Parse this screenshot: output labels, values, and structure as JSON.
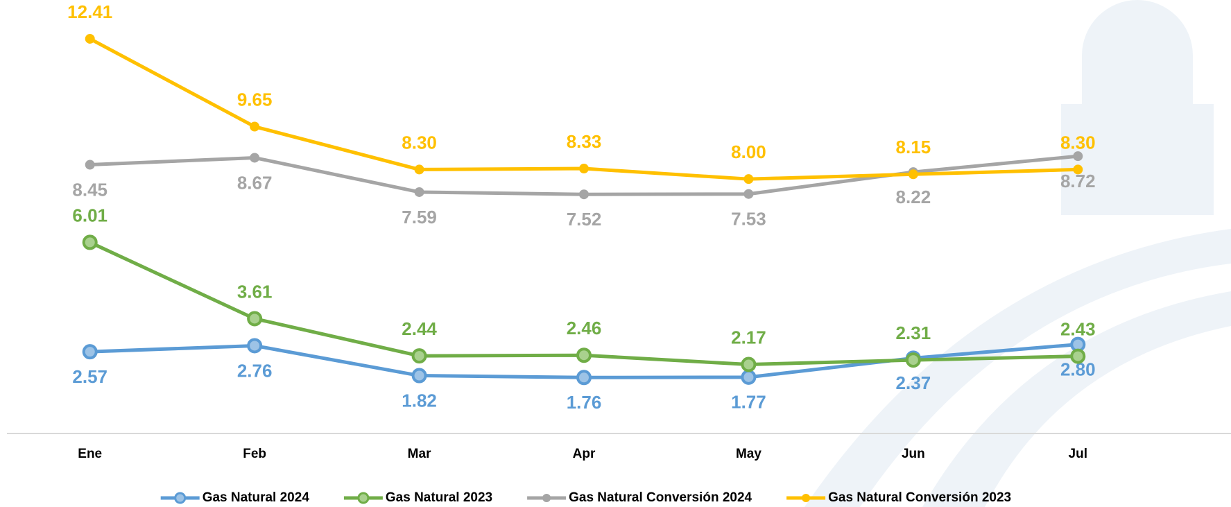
{
  "chart_data": {
    "type": "line",
    "categories": [
      "Ene",
      "Feb",
      "Mar",
      "Apr",
      "May",
      "Jun",
      "Jul"
    ],
    "series": [
      {
        "name": "Gas Natural 2024",
        "color": "#5b9bd5",
        "values": [
          2.57,
          2.76,
          1.82,
          1.76,
          1.77,
          2.37,
          2.8
        ],
        "value_labels": [
          "2.57",
          "2.76",
          "1.82",
          "1.76",
          "1.77",
          "2.37",
          "2.80"
        ]
      },
      {
        "name": "Gas Natural 2023",
        "color": "#70ad47",
        "values": [
          6.01,
          3.61,
          2.44,
          2.46,
          2.17,
          2.31,
          2.43
        ],
        "value_labels": [
          "6.01",
          "3.61",
          "2.44",
          "2.46",
          "2.17",
          "2.31",
          "2.43"
        ]
      },
      {
        "name": "Gas Natural Conversión 2024",
        "color": "#a5a5a5",
        "values": [
          8.45,
          8.67,
          7.59,
          7.52,
          7.53,
          8.22,
          8.72
        ],
        "value_labels": [
          "8.45",
          "8.67",
          "7.59",
          "7.52",
          "7.53",
          "8.22",
          "8.72"
        ]
      },
      {
        "name": "Gas Natural Conversión 2023",
        "color": "#ffc000",
        "values": [
          12.41,
          9.65,
          8.3,
          8.33,
          8.0,
          8.15,
          8.3
        ],
        "value_labels": [
          "12.41",
          "9.65",
          "8.30",
          "8.33",
          "8.00",
          "8.15",
          "8.30"
        ]
      }
    ],
    "ylim": [
      0,
      13.5
    ]
  }
}
